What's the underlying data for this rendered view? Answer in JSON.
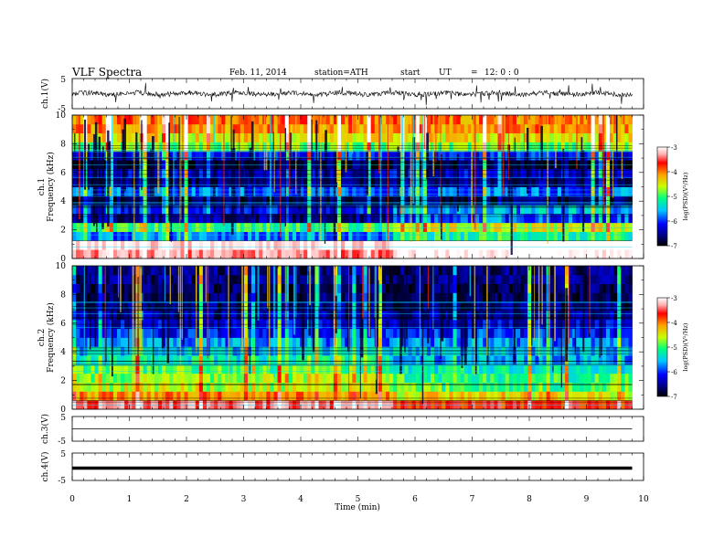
{
  "header": {
    "title": "VLF Spectra",
    "date": "Feb. 11, 2014",
    "station": "station=ATH",
    "start_label": "start",
    "ut_label": "UT",
    "eq": "=",
    "start_time": "12: 0 : 0"
  },
  "colorbar": {
    "ticks": [
      "-3",
      "-4",
      "-5",
      "-6",
      "-7"
    ],
    "label": "log(PSD)(V²/Hz)",
    "colors": [
      "#000000",
      "#00008b",
      "#0000ff",
      "#00c8ff",
      "#00ff80",
      "#c8ff00",
      "#ffa000",
      "#ff0000",
      "#ffb4b4",
      "#ffffff"
    ]
  },
  "chart_data": [
    {
      "type": "line",
      "panel": "ch.1",
      "ylabel": "ch.1(V)",
      "ylim": [
        -5,
        5
      ],
      "yticks": [
        "5",
        "-5"
      ],
      "xlim": [
        0,
        10
      ],
      "description_values": {
        "baseline": 0,
        "amplitude_typical": 1.2,
        "spikes_to": 3
      }
    },
    {
      "type": "heatmap",
      "panel": "ch.1",
      "ylabel_channel": "ch.1",
      "ylabel": "Frequency (kHz)",
      "ylim": [
        0,
        10
      ],
      "yticks": [
        "0",
        "2",
        "4",
        "6",
        "8",
        "10"
      ],
      "xlim": [
        0,
        9.8
      ],
      "colorscale_range": [
        -7,
        -3
      ],
      "band_levels_low_to_high": [
        -3.5,
        -3.2,
        -5.8,
        -5.2,
        -6.5,
        -6.2,
        -6.7,
        -5.9,
        -6.6,
        -6.3,
        -6.8,
        -6.1,
        -5.0,
        -4.6,
        -4.3,
        -4.2
      ]
    },
    {
      "type": "heatmap",
      "panel": "ch.2",
      "ylabel_channel": "ch.2",
      "ylabel": "Frequency (kHz)",
      "ylim": [
        0,
        10
      ],
      "yticks": [
        "0",
        "2",
        "4",
        "6",
        "8",
        "10"
      ],
      "xlim": [
        0,
        9.8
      ],
      "colorscale_range": [
        -7,
        -3
      ],
      "band_levels_low_to_high": [
        -3.6,
        -4.3,
        -4.8,
        -4.9,
        -5.1,
        -5.4,
        -5.6,
        -5.8,
        -6.1,
        -6.3,
        -6.5,
        -6.6,
        -6.7,
        -6.7,
        -6.6,
        -6.6
      ]
    },
    {
      "type": "line",
      "panel": "ch.3",
      "ylabel": "ch.3(V)",
      "ylim": [
        -5,
        5
      ],
      "yticks": [
        "5",
        "-5"
      ],
      "xlim": [
        0,
        10
      ],
      "description_values": {
        "baseline": 0
      }
    },
    {
      "type": "line",
      "panel": "ch.4",
      "ylabel": "ch.4(V)",
      "ylim": [
        -5,
        5
      ],
      "yticks": [
        "5",
        "-5"
      ],
      "xlim": [
        0,
        10
      ],
      "description_values": {
        "baseline": -0.5
      }
    }
  ],
  "xaxis": {
    "label": "Time (min)",
    "ticks": [
      "0",
      "1",
      "2",
      "3",
      "4",
      "5",
      "6",
      "7",
      "8",
      "9",
      "10"
    ]
  }
}
